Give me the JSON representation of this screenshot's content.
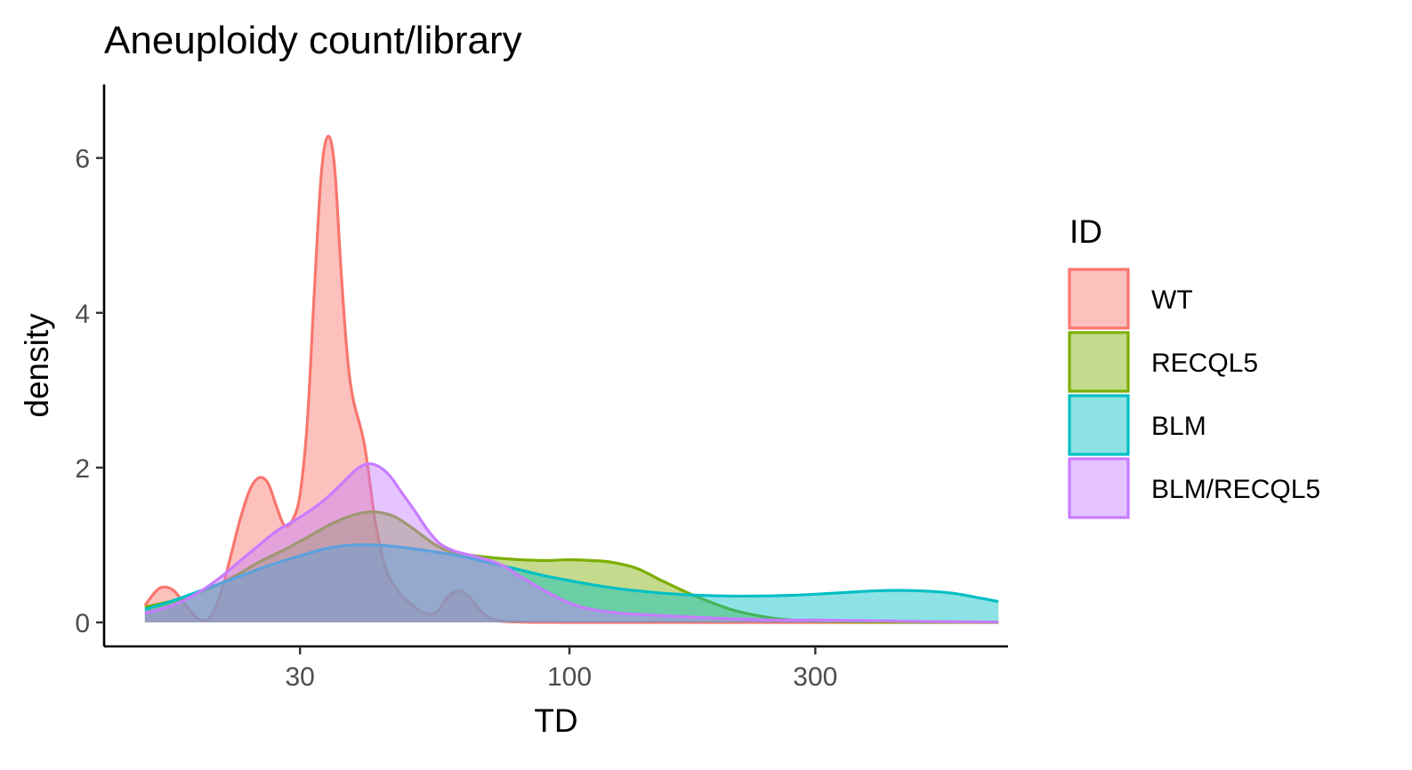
{
  "chart_data": {
    "type": "area",
    "title": "Aneuploidy count/library",
    "xlabel": "TD",
    "ylabel": "density",
    "x_scale": "log10",
    "xlim": [
      12.5,
      710
    ],
    "ylim": [
      -0.31,
      6.95
    ],
    "x_ticks": [
      {
        "value": 30,
        "label": "30"
      },
      {
        "value": 100,
        "label": "100"
      },
      {
        "value": 300,
        "label": "300"
      }
    ],
    "y_ticks": [
      {
        "value": 0,
        "label": "0"
      },
      {
        "value": 2,
        "label": "2"
      },
      {
        "value": 4,
        "label": "4"
      },
      {
        "value": 6,
        "label": "6"
      }
    ],
    "grid": false,
    "legend": {
      "title": "ID",
      "position": "right"
    },
    "series": [
      {
        "name": "WT",
        "line_color": "#F8766D",
        "fill_color": "#F8766D",
        "x": [
          15,
          16,
          17,
          18,
          19,
          20,
          21,
          22,
          23,
          24,
          25,
          26,
          27,
          28,
          29,
          30,
          31,
          32,
          33,
          34,
          35,
          36,
          37,
          38,
          40,
          42,
          44,
          46,
          48,
          50,
          52,
          55,
          58,
          61,
          64,
          67,
          70,
          73,
          76,
          80,
          85,
          90,
          100,
          120,
          160,
          300,
          680
        ],
        "values": [
          0.22,
          0.44,
          0.42,
          0.22,
          0.05,
          0.05,
          0.35,
          0.85,
          1.35,
          1.72,
          1.87,
          1.8,
          1.5,
          1.25,
          1.32,
          1.65,
          2.6,
          4.3,
          5.8,
          6.28,
          5.9,
          4.6,
          3.5,
          2.9,
          2.3,
          1.3,
          0.7,
          0.45,
          0.3,
          0.2,
          0.13,
          0.12,
          0.32,
          0.41,
          0.32,
          0.16,
          0.06,
          0.02,
          0.01,
          0.005,
          0.002,
          0.001,
          0,
          0,
          0,
          0,
          0
        ]
      },
      {
        "name": "RECQL5",
        "line_color": "#7CAE00",
        "fill_color": "#7CAE00",
        "x": [
          15,
          17,
          19,
          21,
          23,
          25,
          28,
          31,
          34,
          37,
          40,
          43,
          46,
          50,
          55,
          60,
          70,
          80,
          90,
          100,
          110,
          120,
          135,
          150,
          170,
          190,
          210,
          240,
          270,
          300,
          400,
          550,
          680
        ],
        "values": [
          0.2,
          0.28,
          0.38,
          0.5,
          0.64,
          0.78,
          0.94,
          1.1,
          1.25,
          1.36,
          1.42,
          1.42,
          1.36,
          1.2,
          1.0,
          0.9,
          0.84,
          0.81,
          0.8,
          0.81,
          0.8,
          0.78,
          0.7,
          0.55,
          0.38,
          0.25,
          0.15,
          0.07,
          0.03,
          0.015,
          0.005,
          0.002,
          0.001
        ]
      },
      {
        "name": "BLM",
        "line_color": "#00BFC4",
        "fill_color": "#00BFC4",
        "x": [
          15,
          17,
          20,
          23,
          26,
          30,
          34,
          38,
          42,
          46,
          50,
          60,
          70,
          80,
          90,
          100,
          120,
          150,
          180,
          220,
          270,
          330,
          400,
          470,
          550,
          620,
          680
        ],
        "values": [
          0.17,
          0.28,
          0.45,
          0.6,
          0.73,
          0.86,
          0.96,
          1.0,
          1.0,
          0.98,
          0.95,
          0.87,
          0.77,
          0.68,
          0.6,
          0.54,
          0.45,
          0.38,
          0.35,
          0.34,
          0.35,
          0.38,
          0.41,
          0.41,
          0.38,
          0.32,
          0.27
        ]
      },
      {
        "name": "BLM/RECQL5",
        "line_color": "#C77CFF",
        "fill_color": "#C77CFF",
        "x": [
          15,
          17,
          19,
          21,
          23,
          25,
          27,
          29,
          31,
          33,
          35,
          37,
          39,
          41,
          43,
          45,
          47,
          50,
          53,
          56,
          60,
          65,
          70,
          75,
          80,
          90,
          100,
          110,
          125,
          140,
          160,
          200,
          250,
          300,
          400,
          500,
          680
        ],
        "values": [
          0.12,
          0.22,
          0.38,
          0.58,
          0.8,
          1.0,
          1.18,
          1.3,
          1.42,
          1.55,
          1.7,
          1.86,
          2.0,
          2.05,
          2.0,
          1.88,
          1.7,
          1.45,
          1.2,
          1.02,
          0.92,
          0.86,
          0.8,
          0.72,
          0.6,
          0.4,
          0.25,
          0.17,
          0.12,
          0.1,
          0.08,
          0.05,
          0.03,
          0.03,
          0.02,
          0.01,
          0.005
        ]
      }
    ]
  }
}
